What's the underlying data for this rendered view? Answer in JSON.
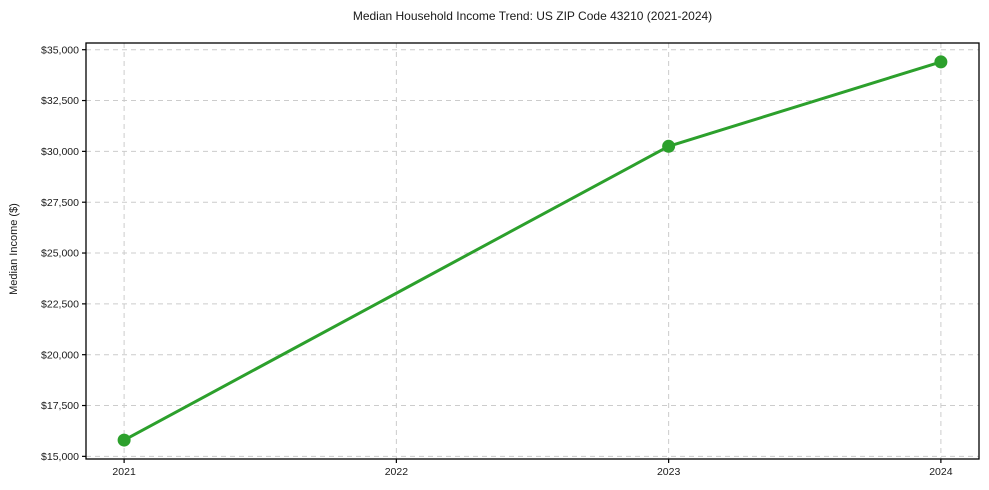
{
  "chart_data": {
    "type": "line",
    "title": "Median Household Income Trend: US ZIP Code 43210 (2021-2024)",
    "xlabel": "",
    "ylabel": "Median Income ($)",
    "series": [
      {
        "name": "Median Household Income",
        "points": [
          {
            "x": 2021,
            "y": 15800
          },
          {
            "x": 2023,
            "y": 30250
          },
          {
            "x": 2024,
            "y": 34400
          }
        ]
      }
    ],
    "x_ticks": [
      {
        "value": 2021,
        "label": "2021"
      },
      {
        "value": 2022,
        "label": "2022"
      },
      {
        "value": 2023,
        "label": "2023"
      },
      {
        "value": 2024,
        "label": "2024"
      }
    ],
    "y_ticks": [
      {
        "value": 15000,
        "label": "$15,000"
      },
      {
        "value": 17500,
        "label": "$17,500"
      },
      {
        "value": 20000,
        "label": "$20,000"
      },
      {
        "value": 22500,
        "label": "$22,500"
      },
      {
        "value": 25000,
        "label": "$25,000"
      },
      {
        "value": 27500,
        "label": "$27,500"
      },
      {
        "value": 30000,
        "label": "$30,000"
      },
      {
        "value": 32500,
        "label": "$32,500"
      },
      {
        "value": 35000,
        "label": "$35,000"
      }
    ],
    "xlim": [
      2020.86,
      2024.14
    ],
    "ylim": [
      14870,
      35330
    ],
    "grid": true,
    "grid_style": "dashed",
    "legend": "none",
    "colors": {
      "line": "#2ca02c",
      "marker": "#2ca02c",
      "grid": "#cccccc",
      "spine": "#000000",
      "text": "#1a1a1a",
      "background": "#ffffff"
    }
  }
}
